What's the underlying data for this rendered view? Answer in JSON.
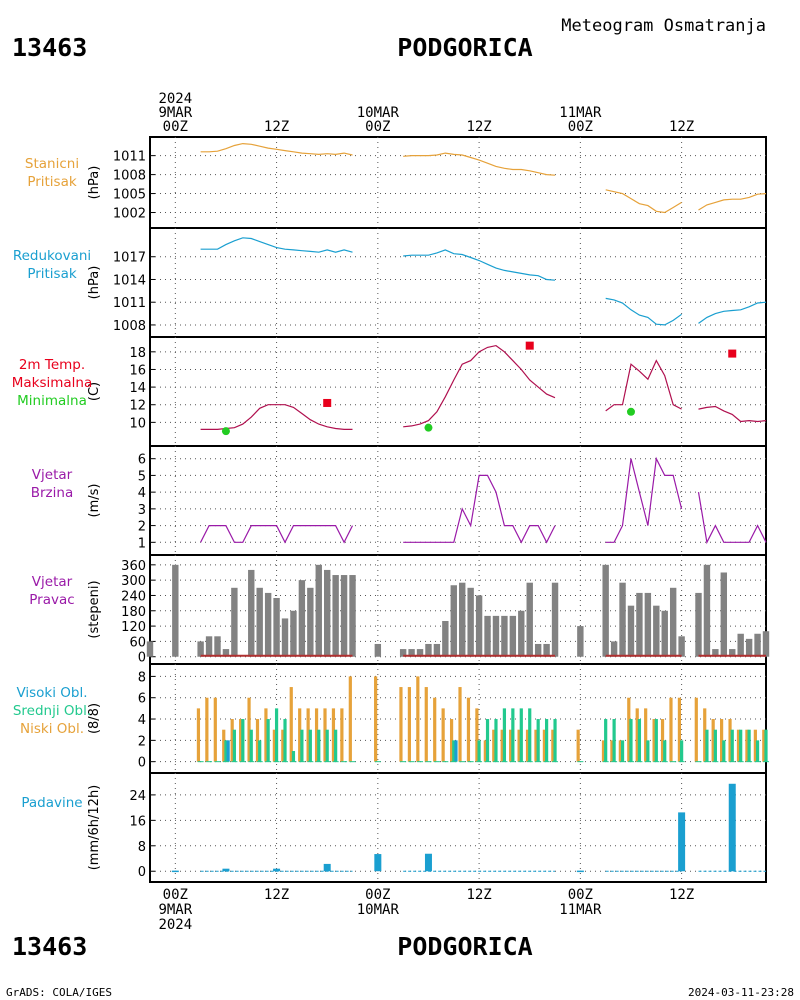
{
  "header": {
    "station_id": "13463",
    "station_name": "PODGORICA",
    "subtitle": "Meteogram Osmatranja"
  },
  "footer": {
    "station_id": "13463",
    "station_name": "PODGORICA",
    "credit": "GrADS: COLA/IGES",
    "timestamp": "2024-03-11-23:28"
  },
  "time_axis": {
    "top": [
      {
        "t": 0,
        "lines": [
          "2024",
          "9MAR",
          "00Z"
        ]
      },
      {
        "t": 12,
        "lines": [
          "12Z"
        ]
      },
      {
        "t": 24,
        "lines": [
          "10MAR",
          "00Z"
        ]
      },
      {
        "t": 36,
        "lines": [
          "12Z"
        ]
      },
      {
        "t": 48,
        "lines": [
          "11MAR",
          "00Z"
        ]
      },
      {
        "t": 60,
        "lines": [
          "12Z"
        ]
      }
    ],
    "bottom": [
      {
        "t": 0,
        "lines": [
          "00Z",
          "9MAR",
          "2024"
        ]
      },
      {
        "t": 12,
        "lines": [
          "12Z"
        ]
      },
      {
        "t": 24,
        "lines": [
          "00Z",
          "10MAR"
        ]
      },
      {
        "t": 36,
        "lines": [
          "12Z"
        ]
      },
      {
        "t": 48,
        "lines": [
          "00Z",
          "11MAR"
        ]
      },
      {
        "t": 60,
        "lines": [
          "12Z"
        ]
      }
    ],
    "t_range": [
      -3,
      70
    ]
  },
  "colors": {
    "station_pressure": "#e6a23a",
    "reduced_pressure": "#1a9fd0",
    "temperature": "#b0104f",
    "max_temp": "#e8001c",
    "min_temp": "#22cc22",
    "wind": "#9a1aa8",
    "wind_dir_bar": "#828282",
    "wind_dir_base": "#b03030",
    "cloud_high": "#1a9fd0",
    "cloud_mid": "#22c98e",
    "cloud_low": "#e6a23a",
    "precip": "#1a9fd0",
    "grid": "#555555"
  },
  "chart_data": [
    {
      "type": "line",
      "panel_label": [
        "Stanicni",
        "Pritisak"
      ],
      "ylabel": "(hPa)",
      "yticks": [
        1002,
        1005,
        1008,
        1011
      ],
      "ylim": [
        1000.5,
        1013
      ],
      "series": [
        {
          "x": [
            3,
            4,
            5,
            6,
            7,
            8,
            9,
            10,
            11,
            12,
            13,
            14,
            15,
            16,
            17,
            18,
            19,
            20,
            21
          ],
          "values": [
            1011.6,
            1011.6,
            1011.7,
            1012.1,
            1012.6,
            1012.9,
            1012.8,
            1012.5,
            1012.2,
            1012.0,
            1011.8,
            1011.6,
            1011.4,
            1011.3,
            1011.2,
            1011.3,
            1011.2,
            1011.4,
            1011.1
          ]
        },
        {
          "x": [
            27,
            28,
            29,
            30,
            31,
            32,
            33,
            34,
            35,
            36,
            37,
            38,
            39,
            40,
            41,
            42,
            43,
            44,
            45
          ],
          "values": [
            1010.9,
            1011.0,
            1011.0,
            1011.0,
            1011.1,
            1011.4,
            1011.2,
            1011.1,
            1010.7,
            1010.3,
            1009.8,
            1009.3,
            1009.0,
            1008.8,
            1008.8,
            1008.6,
            1008.3,
            1008.0,
            1007.9
          ]
        },
        {
          "x": [
            51,
            52,
            53,
            54,
            55,
            56,
            57,
            58,
            59,
            60
          ],
          "values": [
            1005.6,
            1005.3,
            1005.0,
            1004.2,
            1003.4,
            1003.1,
            1002.2,
            1002.0,
            1002.8,
            1003.6
          ]
        },
        {
          "x": [
            62,
            63,
            64,
            65,
            66,
            67,
            68,
            69,
            70
          ],
          "values": [
            1002.4,
            1003.2,
            1003.6,
            1004.0,
            1004.1,
            1004.1,
            1004.4,
            1004.9,
            1005.0
          ]
        }
      ]
    },
    {
      "type": "line",
      "panel_label": [
        "Redukovani",
        "Pritisak"
      ],
      "ylabel": "(hPa)",
      "yticks": [
        1008,
        1011,
        1014,
        1017
      ],
      "ylim": [
        1007.2,
        1020
      ],
      "series": [
        {
          "x": [
            3,
            4,
            5,
            6,
            7,
            8,
            9,
            10,
            11,
            12,
            13,
            14,
            15,
            16,
            17,
            18,
            19,
            20,
            21
          ],
          "values": [
            1018.0,
            1018.0,
            1018.0,
            1018.6,
            1019.1,
            1019.5,
            1019.4,
            1019.0,
            1018.6,
            1018.2,
            1018.0,
            1017.9,
            1017.8,
            1017.7,
            1017.6,
            1017.9,
            1017.6,
            1017.9,
            1017.6
          ]
        },
        {
          "x": [
            27,
            28,
            29,
            30,
            31,
            32,
            33,
            34,
            35,
            36,
            37,
            38,
            39,
            40,
            41,
            42,
            43,
            44,
            45
          ],
          "values": [
            1017.1,
            1017.2,
            1017.2,
            1017.2,
            1017.5,
            1017.9,
            1017.4,
            1017.3,
            1016.9,
            1016.5,
            1016.0,
            1015.5,
            1015.2,
            1015.0,
            1014.8,
            1014.6,
            1014.5,
            1014.0,
            1013.9
          ]
        },
        {
          "x": [
            51,
            52,
            53,
            54,
            55,
            56,
            57,
            58,
            59,
            60
          ],
          "values": [
            1011.5,
            1011.3,
            1010.9,
            1010.0,
            1009.3,
            1009.0,
            1008.1,
            1008.0,
            1008.6,
            1009.4
          ]
        },
        {
          "x": [
            62,
            63,
            64,
            65,
            66,
            67,
            68,
            69,
            70
          ],
          "values": [
            1008.2,
            1009.0,
            1009.5,
            1009.8,
            1009.9,
            1010.0,
            1010.4,
            1010.9,
            1011.0
          ]
        }
      ]
    },
    {
      "type": "line",
      "panel_label": [
        "2m Temp.",
        "Maksimalna",
        "Minimalna"
      ],
      "ylabel": "(C)",
      "yticks": [
        10,
        12,
        14,
        16,
        18
      ],
      "ylim": [
        8,
        19
      ],
      "series": [
        {
          "x": [
            3,
            4,
            5,
            6,
            7,
            8,
            9,
            10,
            11,
            12,
            13,
            14,
            15,
            16,
            17,
            18,
            19,
            20,
            21
          ],
          "values": [
            9.2,
            9.2,
            9.2,
            9.3,
            9.4,
            9.8,
            10.6,
            11.6,
            12.0,
            12.0,
            12.0,
            11.7,
            11.0,
            10.3,
            9.8,
            9.5,
            9.3,
            9.2,
            9.2
          ]
        },
        {
          "x": [
            27,
            28,
            29,
            30,
            31,
            32,
            33,
            34,
            35,
            36,
            37,
            38,
            39,
            40,
            41,
            42,
            43,
            44,
            45
          ],
          "values": [
            9.5,
            9.6,
            9.8,
            10.2,
            11.2,
            12.9,
            14.8,
            16.6,
            17.0,
            18.0,
            18.5,
            18.7,
            18.0,
            17.0,
            16.0,
            14.8,
            14.0,
            13.2,
            12.8
          ]
        },
        {
          "x": [
            51,
            52,
            53,
            54,
            55,
            56,
            57,
            58,
            59,
            60
          ],
          "values": [
            11.3,
            12.0,
            12.0,
            16.6,
            15.8,
            14.9,
            17.0,
            15.3,
            12.0,
            11.5
          ]
        },
        {
          "x": [
            62,
            63,
            64,
            65,
            66,
            67,
            68,
            69,
            70
          ],
          "values": [
            11.5,
            11.7,
            11.8,
            11.3,
            10.9,
            10.1,
            10.2,
            10.1,
            10.2
          ]
        }
      ],
      "max_points": {
        "x": [
          18,
          42,
          66
        ],
        "values": [
          12.2,
          18.7,
          17.8
        ]
      },
      "min_points": {
        "x": [
          6,
          30,
          54
        ],
        "values": [
          9.0,
          9.4,
          11.2
        ]
      }
    },
    {
      "type": "line",
      "panel_label": [
        "Vjetar",
        "Brzina"
      ],
      "ylabel": "(m/s)",
      "yticks": [
        1,
        2,
        3,
        4,
        5,
        6
      ],
      "ylim": [
        0.6,
        6.4
      ],
      "series": [
        {
          "x": [
            3,
            4,
            5,
            6,
            7,
            8,
            9,
            10,
            11,
            12,
            13,
            14,
            15,
            16,
            17,
            18,
            19,
            20,
            21
          ],
          "values": [
            1,
            2,
            2,
            2,
            1,
            1,
            2,
            2,
            2,
            2,
            1,
            2,
            2,
            2,
            2,
            2,
            2,
            1,
            2
          ]
        },
        {
          "x": [
            27,
            28,
            29,
            30,
            31,
            32,
            33,
            34,
            35,
            36,
            37,
            38,
            39,
            40,
            41,
            42,
            43,
            44,
            45
          ],
          "values": [
            1,
            1,
            1,
            1,
            1,
            1,
            1,
            3,
            2,
            5,
            5,
            4,
            2,
            2,
            1,
            2,
            2,
            1,
            2
          ]
        },
        {
          "x": [
            51,
            52,
            53,
            54,
            55,
            56,
            57,
            58,
            59,
            60
          ],
          "values": [
            1,
            1,
            2,
            6,
            4,
            2,
            6,
            5,
            5,
            3
          ]
        },
        {
          "x": [
            62,
            63,
            64,
            65,
            66,
            67,
            68,
            69,
            70
          ],
          "values": [
            4,
            1,
            2,
            1,
            1,
            1,
            1,
            2,
            1
          ]
        }
      ]
    },
    {
      "type": "bar",
      "panel_label": [
        "Vjetar",
        "Pravac"
      ],
      "ylabel": "(stepeni)",
      "yticks": [
        0,
        60,
        120,
        180,
        240,
        300,
        360
      ],
      "ylim": [
        -5,
        375
      ],
      "x": [
        -3,
        0,
        3,
        4,
        5,
        6,
        7,
        8,
        9,
        10,
        11,
        12,
        13,
        14,
        15,
        16,
        17,
        18,
        19,
        20,
        21,
        24,
        27,
        28,
        29,
        30,
        31,
        32,
        33,
        34,
        35,
        36,
        37,
        38,
        39,
        40,
        41,
        42,
        43,
        44,
        45,
        48,
        51,
        52,
        53,
        54,
        55,
        56,
        57,
        58,
        59,
        60,
        62,
        63,
        64,
        65,
        66,
        67,
        68,
        69,
        70
      ],
      "values": [
        60,
        360,
        60,
        80,
        80,
        30,
        270,
        0,
        340,
        270,
        250,
        230,
        150,
        180,
        300,
        270,
        360,
        340,
        320,
        320,
        320,
        50,
        30,
        30,
        30,
        50,
        50,
        140,
        280,
        290,
        270,
        240,
        160,
        160,
        160,
        160,
        180,
        290,
        50,
        50,
        290,
        120,
        360,
        60,
        290,
        200,
        250,
        250,
        200,
        180,
        270,
        80,
        250,
        360,
        30,
        330,
        30,
        90,
        70,
        90,
        100
      ],
      "base_from_x": 3
    },
    {
      "type": "bar",
      "panel_label": [
        "Visoki Obl.",
        "Srednji Obl.",
        "Niski Obl."
      ],
      "ylabel": "(8/8)",
      "yticks": [
        0,
        2,
        4,
        6,
        8
      ],
      "ylim": [
        -0.5,
        8.6
      ],
      "x": [
        3,
        4,
        5,
        6,
        7,
        8,
        9,
        10,
        11,
        12,
        13,
        14,
        15,
        16,
        17,
        18,
        19,
        20,
        21,
        24,
        27,
        28,
        29,
        30,
        31,
        32,
        33,
        34,
        35,
        36,
        37,
        38,
        39,
        40,
        41,
        42,
        43,
        44,
        45,
        48,
        51,
        52,
        53,
        54,
        55,
        56,
        57,
        58,
        59,
        60,
        62,
        63,
        64,
        65,
        66,
        67,
        68,
        69,
        70
      ],
      "series": [
        {
          "name": "Niski Obl.",
          "values": [
            5,
            6,
            6,
            3,
            4,
            4,
            6,
            4,
            5,
            3,
            3,
            7,
            5,
            5,
            5,
            5,
            5,
            5,
            8,
            8,
            7,
            7,
            8,
            7,
            6,
            5,
            4,
            7,
            6,
            5,
            2,
            3,
            3,
            3,
            3,
            3,
            3,
            3,
            3,
            3,
            2,
            2,
            2,
            6,
            5,
            5,
            4,
            4,
            6,
            6,
            6,
            5,
            4,
            4,
            4,
            3,
            3,
            3,
            3
          ]
        },
        {
          "name": "Srednji Obl.",
          "values": [
            0,
            0,
            0,
            2,
            3,
            4,
            3,
            2,
            4,
            5,
            4,
            1,
            3,
            3,
            3,
            3,
            3,
            0,
            0,
            0,
            0,
            0,
            0,
            0,
            0,
            0,
            2,
            0,
            0,
            2,
            4,
            4,
            5,
            5,
            5,
            5,
            4,
            4,
            4,
            0,
            4,
            4,
            2,
            4,
            4,
            2,
            4,
            2,
            0,
            2,
            0,
            3,
            3,
            2,
            3,
            3,
            3,
            2,
            3
          ]
        },
        {
          "name": "Visoki Obl.",
          "values": [
            0,
            0,
            0,
            2,
            0,
            0,
            0,
            0,
            0,
            0,
            0,
            0,
            0,
            0,
            0,
            0,
            0,
            0,
            0,
            0,
            0,
            0,
            0,
            0,
            0,
            0,
            2,
            0,
            0,
            0,
            0,
            0,
            0,
            0,
            0,
            0,
            0,
            0,
            0,
            0,
            0,
            0,
            0,
            0,
            0,
            0,
            0,
            0,
            0,
            0,
            0,
            0,
            0,
            0,
            0,
            0,
            0,
            0,
            0
          ]
        }
      ]
    },
    {
      "type": "bar",
      "panel_label": [
        "Padavine"
      ],
      "ylabel": "(mm/6h/12h)",
      "yticks": [
        0,
        8,
        16,
        24
      ],
      "ylim": [
        -1.5,
        29
      ],
      "x": [
        0,
        6,
        12,
        18,
        24,
        30,
        48,
        60,
        66
      ],
      "values": [
        0.2,
        0.8,
        0.8,
        2.3,
        5.4,
        5.5,
        0.2,
        18.5,
        27.5
      ],
      "trace_ranges": [
        [
          3,
          21
        ],
        [
          27,
          45
        ],
        [
          51,
          60
        ],
        [
          62,
          70
        ]
      ]
    }
  ]
}
